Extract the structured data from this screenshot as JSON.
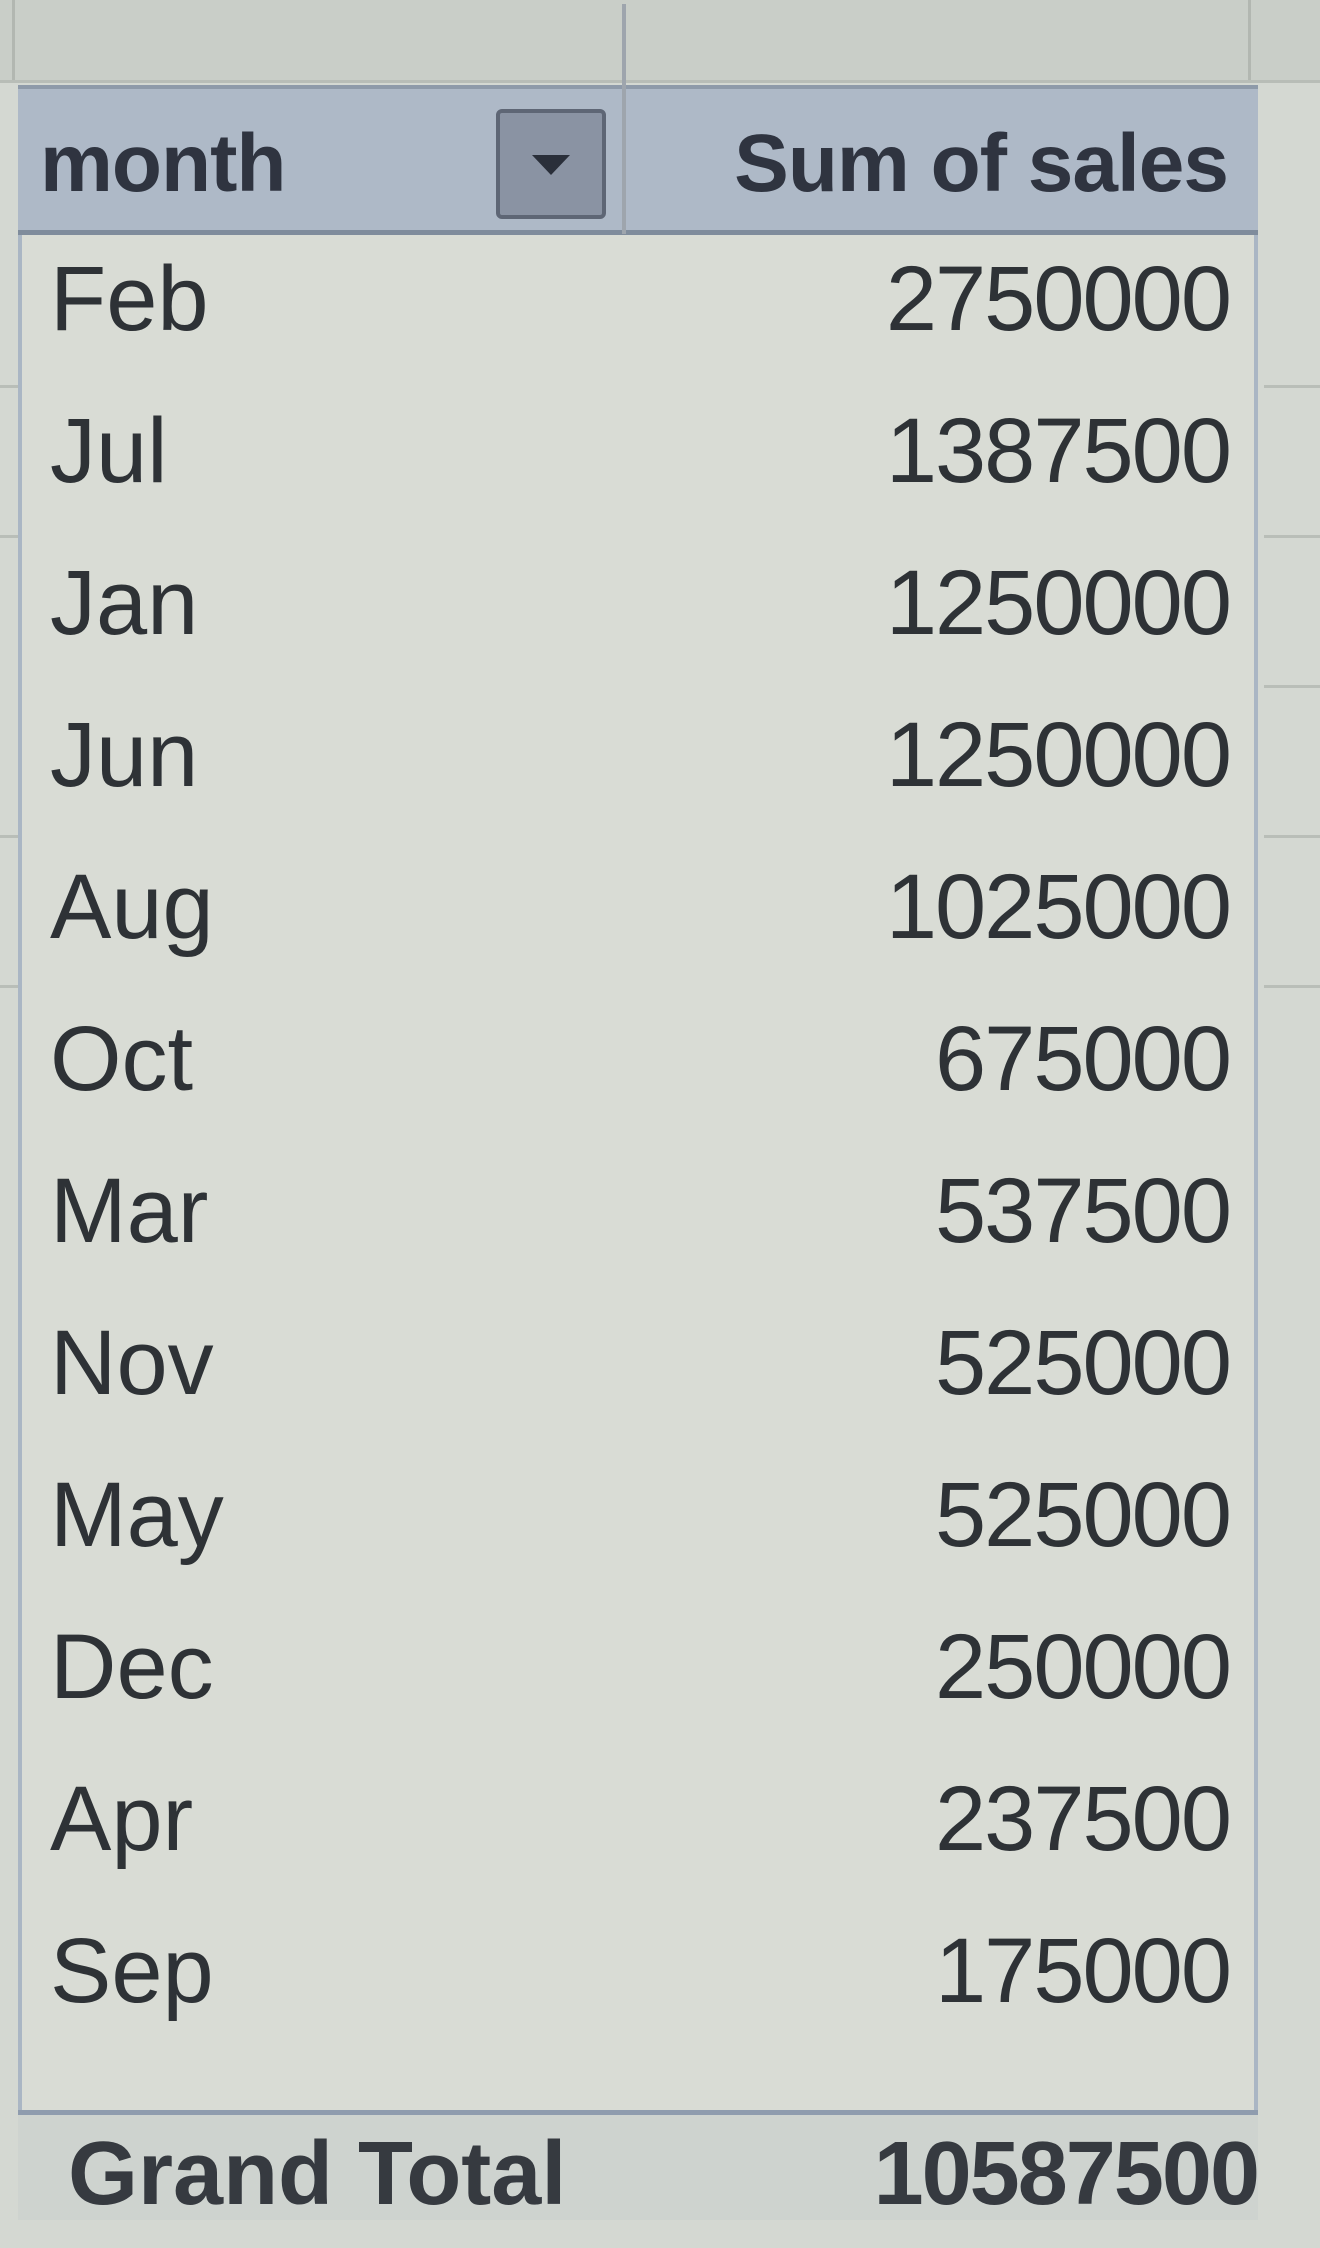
{
  "pivot": {
    "header": {
      "row_field": "month",
      "value_field": "Sum of sales",
      "dropdown_icon": "chevron-down-icon"
    },
    "rows": [
      {
        "month": "Feb",
        "sales": "2750000"
      },
      {
        "month": "Jul",
        "sales": "1387500"
      },
      {
        "month": "Jan",
        "sales": "1250000"
      },
      {
        "month": "Jun",
        "sales": "1250000"
      },
      {
        "month": "Aug",
        "sales": "1025000"
      },
      {
        "month": "Oct",
        "sales": "675000"
      },
      {
        "month": "Mar",
        "sales": "537500"
      },
      {
        "month": "Nov",
        "sales": "525000"
      },
      {
        "month": "May",
        "sales": "525000"
      },
      {
        "month": "Dec",
        "sales": "250000"
      },
      {
        "month": "Apr",
        "sales": "237500"
      },
      {
        "month": "Sep",
        "sales": "175000"
      }
    ],
    "total": {
      "label": "Grand Total",
      "sales": "10587500"
    }
  },
  "colors": {
    "header_bg": "#aeb9c7",
    "body_bg": "#d9dcd5",
    "text": "#2e3236"
  }
}
